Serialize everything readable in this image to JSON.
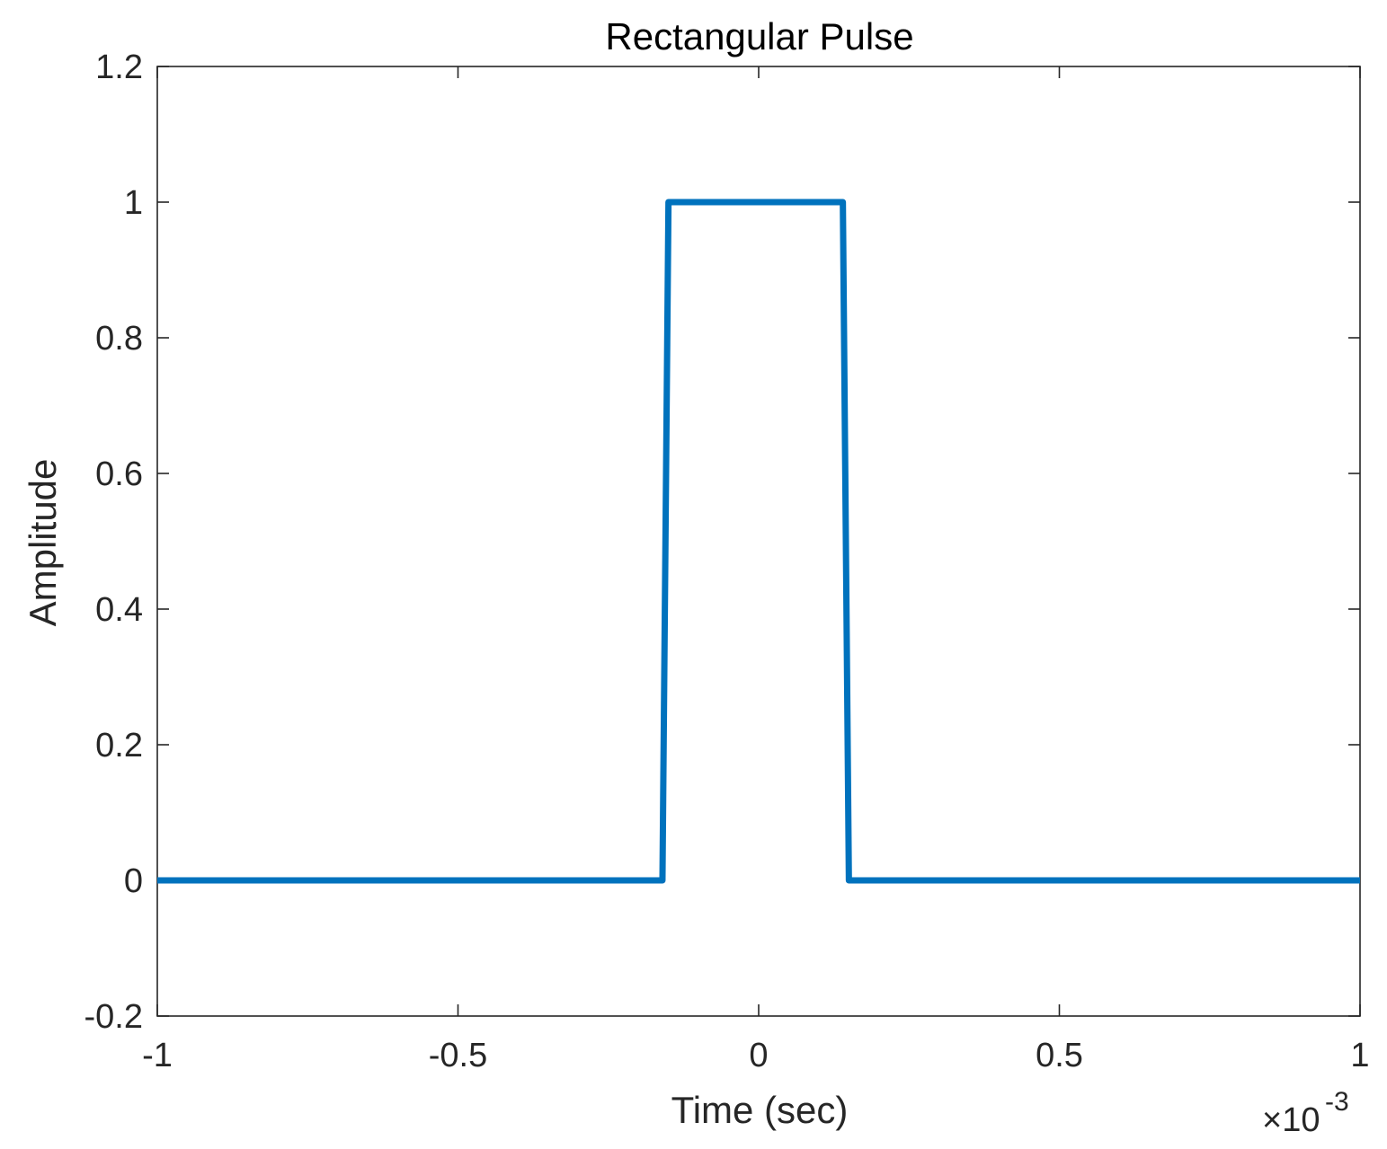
{
  "chart_data": {
    "type": "line",
    "title": "Rectangular Pulse",
    "xlabel": "Time (sec)",
    "ylabel": "Amplitude",
    "x_exponent_label": "×10",
    "x_exponent_power": "-3",
    "xlim": [
      -1,
      1
    ],
    "ylim": [
      -0.2,
      1.2
    ],
    "xticks": [
      -1,
      -0.5,
      0,
      0.5,
      1
    ],
    "xtick_labels": [
      "-1",
      "-0.5",
      "0",
      "0.5",
      "1"
    ],
    "yticks": [
      -0.2,
      0,
      0.2,
      0.4,
      0.6,
      0.8,
      1,
      1.2
    ],
    "ytick_labels": [
      "-0.2",
      "0",
      "0.2",
      "0.4",
      "0.6",
      "0.8",
      "1",
      "1.2"
    ],
    "grid": false,
    "series": [
      {
        "color": "#0072BD",
        "x": [
          -1,
          -0.16,
          -0.15,
          0.14,
          0.15,
          1
        ],
        "y": [
          0,
          0,
          1,
          1,
          0,
          0
        ]
      }
    ]
  }
}
